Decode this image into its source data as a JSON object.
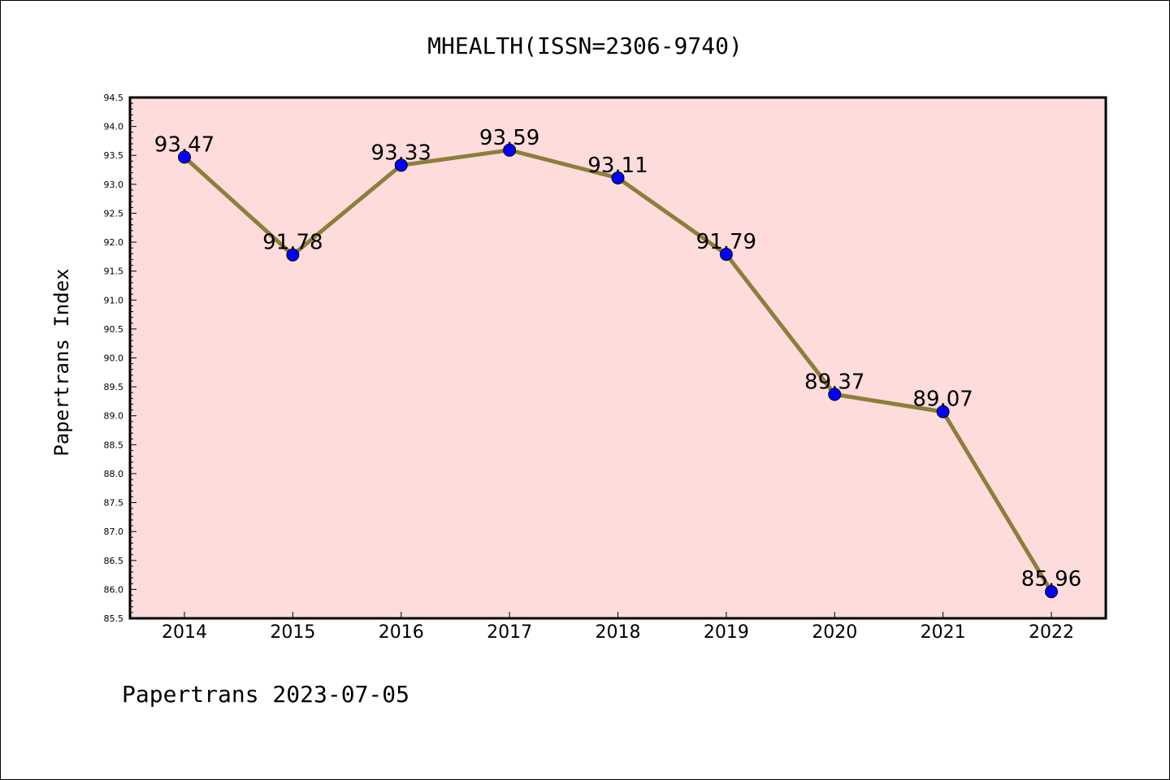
{
  "chart_data": {
    "type": "line",
    "title": "MHEALTH(ISSN=2306-9740)",
    "xlabel": "",
    "ylabel": "Papertrans Index",
    "categories": [
      "2014",
      "2015",
      "2016",
      "2017",
      "2018",
      "2019",
      "2020",
      "2021",
      "2022"
    ],
    "values": [
      93.47,
      91.78,
      93.33,
      93.59,
      93.11,
      91.79,
      89.37,
      89.07,
      85.96
    ],
    "data_labels": [
      "93.47",
      "91.78",
      "93.33",
      "93.59",
      "93.11",
      "91.79",
      "89.37",
      "89.07",
      "85.96"
    ],
    "ylim": [
      85.5,
      94.5
    ],
    "yticks": [
      "85.5",
      "86.0",
      "86.5",
      "87.0",
      "87.5",
      "88.0",
      "88.5",
      "89.0",
      "89.5",
      "90.0",
      "90.5",
      "91.0",
      "91.5",
      "92.0",
      "92.5",
      "93.0",
      "93.5",
      "94.0",
      "94.5"
    ],
    "grid": false,
    "legend": "none",
    "colors": {
      "plot_background": "#fddcdb",
      "line": "#8c7f3b",
      "marker": "#0000ff"
    }
  },
  "footer": {
    "text": "Papertrans 2023-07-05"
  }
}
